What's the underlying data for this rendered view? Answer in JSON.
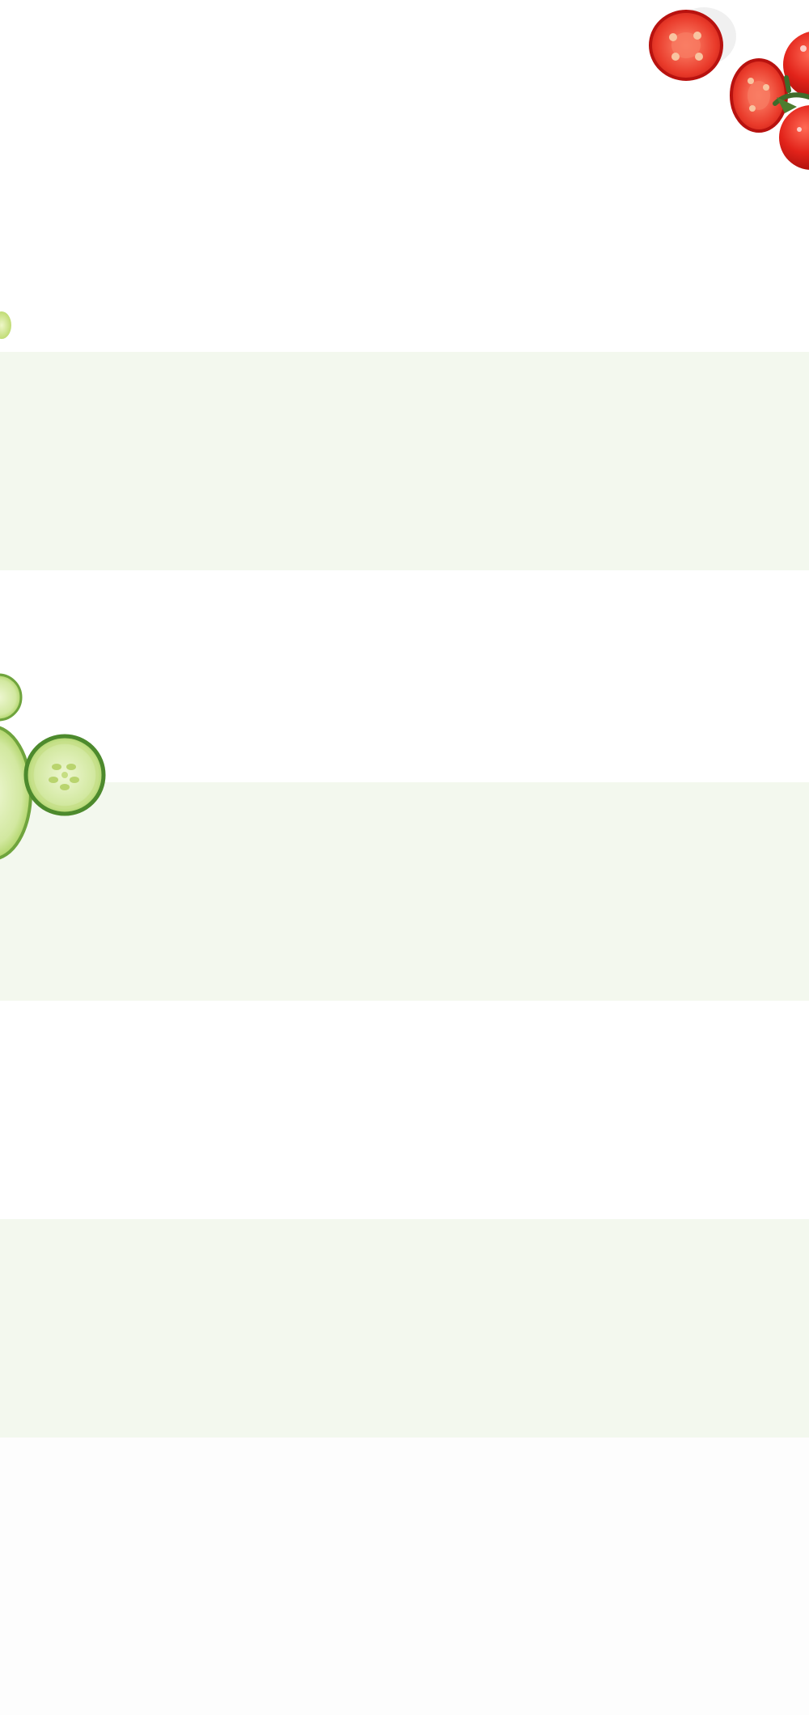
{
  "page": {
    "background_color": "#ffffff",
    "footer_background_color": "#fdfdfd"
  },
  "bands": {
    "color": "#f3f8ee"
  },
  "decorations": {
    "tomatoes": {
      "icon": "tomato-cluster-icon",
      "colors": [
        "#e2231a",
        "#b8120f",
        "#f26a4a",
        "#3f6b2a"
      ]
    },
    "cucumbers": {
      "icon": "cucumber-slices-icon",
      "colors": [
        "#cde59a",
        "#e3f0bd",
        "#6fa43d",
        "#4d8a2d"
      ]
    },
    "lime": {
      "icon": "lime-wedge-icon",
      "colors": [
        "#d9ec9a",
        "#b9d96a"
      ]
    }
  }
}
